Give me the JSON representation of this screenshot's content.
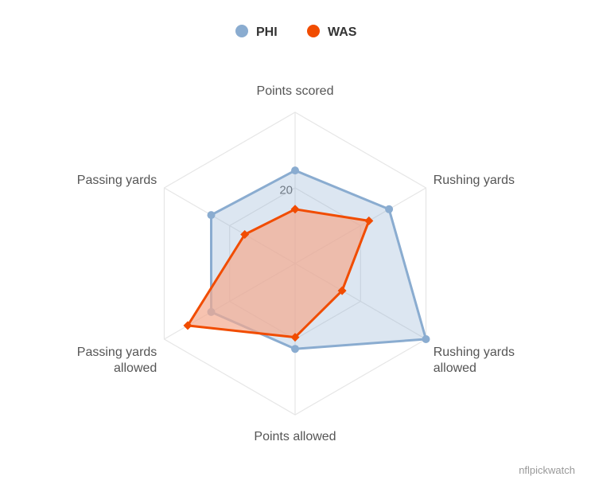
{
  "chart_data": {
    "type": "radar",
    "title": "",
    "categories": [
      "Points scored",
      "Rushing yards",
      "Rushing yards allowed",
      "Points allowed",
      "Passing yards allowed",
      "Passing yards"
    ],
    "category_label_lines": [
      [
        "Points scored"
      ],
      [
        "Rushing yards"
      ],
      [
        "Rushing yards",
        "allowed"
      ],
      [
        "Points allowed"
      ],
      [
        "Passing yards",
        "allowed"
      ],
      [
        "Passing yards"
      ]
    ],
    "radial_axis": {
      "min": 0,
      "max": 39,
      "ticks": [
        20
      ],
      "tick_labels": [
        "20"
      ]
    },
    "grid": true,
    "legend_position": "top-center",
    "series": [
      {
        "name": "PHI",
        "color": "#8aacd0",
        "fill": "#8aacd0",
        "marker": "circle",
        "values": [
          24,
          28,
          39,
          22,
          25,
          25
        ]
      },
      {
        "name": "WAS",
        "color": "#f14c00",
        "fill": "#f4a98f",
        "marker": "diamond",
        "values": [
          14,
          22,
          14,
          19,
          32,
          15
        ]
      }
    ]
  },
  "credit": "nflpickwatch"
}
